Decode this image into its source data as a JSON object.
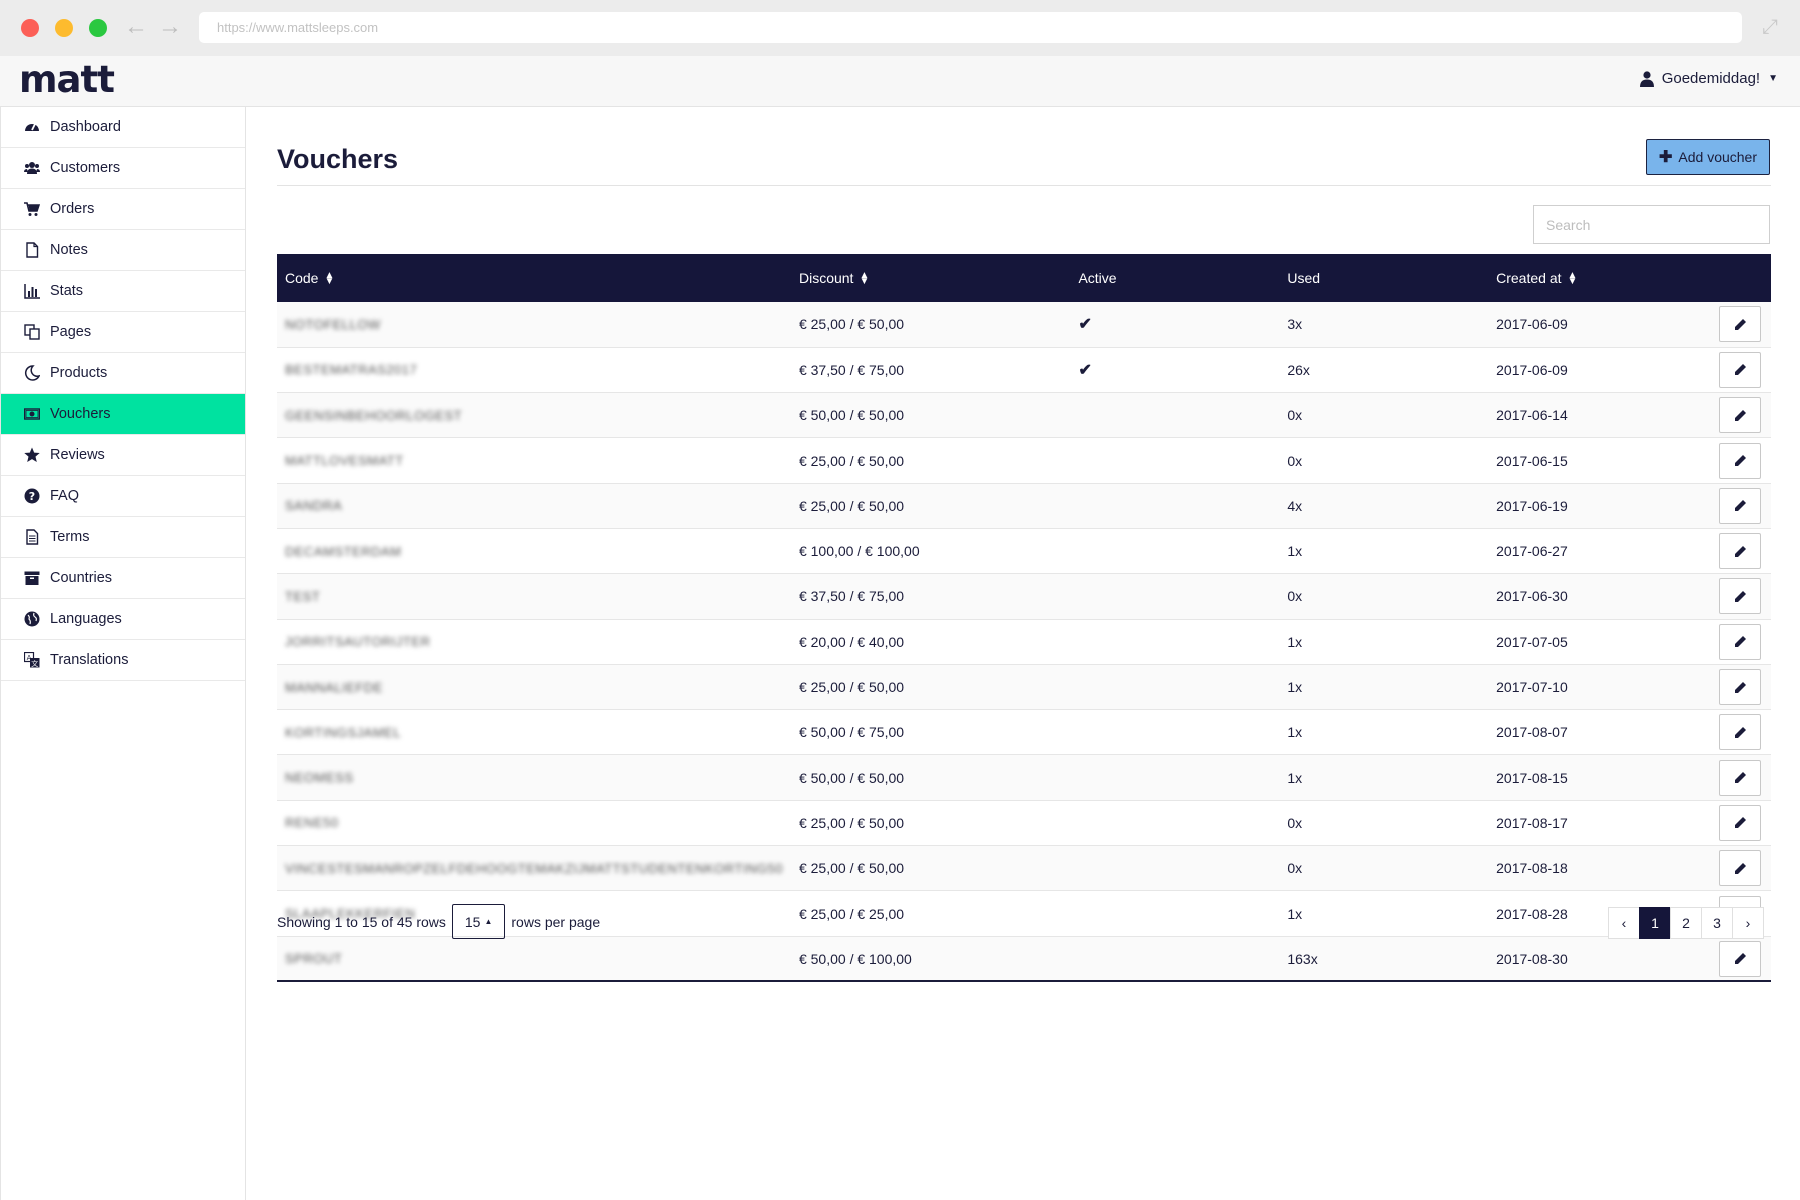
{
  "browser": {
    "url": "https://www.mattsleeps.com"
  },
  "app": {
    "logo": "matt",
    "greeting": "Goedemiddag!"
  },
  "sidebar": {
    "items": [
      {
        "label": "Dashboard",
        "icon": "dashboard-icon"
      },
      {
        "label": "Customers",
        "icon": "users-icon"
      },
      {
        "label": "Orders",
        "icon": "cart-icon"
      },
      {
        "label": "Notes",
        "icon": "file-icon"
      },
      {
        "label": "Stats",
        "icon": "bar-chart-icon"
      },
      {
        "label": "Pages",
        "icon": "copy-icon"
      },
      {
        "label": "Products",
        "icon": "moon-icon"
      },
      {
        "label": "Vouchers",
        "icon": "money-icon",
        "active": true
      },
      {
        "label": "Reviews",
        "icon": "star-icon"
      },
      {
        "label": "FAQ",
        "icon": "question-icon"
      },
      {
        "label": "Terms",
        "icon": "document-icon"
      },
      {
        "label": "Countries",
        "icon": "archive-icon"
      },
      {
        "label": "Languages",
        "icon": "globe-icon"
      },
      {
        "label": "Translations",
        "icon": "translate-icon"
      }
    ]
  },
  "page": {
    "title": "Vouchers",
    "add_button": "Add voucher",
    "search_placeholder": "Search"
  },
  "table": {
    "columns": [
      "Code",
      "Discount",
      "Active",
      "Used",
      "Created at"
    ],
    "rows": [
      {
        "code": "NOTOFELLOW",
        "discount": "€ 25,00 / € 50,00",
        "active": true,
        "used": "3x",
        "created": "2017-06-09"
      },
      {
        "code": "BESTEMATRAS2017",
        "discount": "€ 37,50 / € 75,00",
        "active": true,
        "used": "26x",
        "created": "2017-06-09"
      },
      {
        "code": "GEENSINBEHOORLOGEST",
        "discount": "€ 50,00 / € 50,00",
        "active": false,
        "used": "0x",
        "created": "2017-06-14"
      },
      {
        "code": "MATTLOVESMATT",
        "discount": "€ 25,00 / € 50,00",
        "active": false,
        "used": "0x",
        "created": "2017-06-15"
      },
      {
        "code": "SANDRA",
        "discount": "€ 25,00 / € 50,00",
        "active": false,
        "used": "4x",
        "created": "2017-06-19"
      },
      {
        "code": "DECAMSTERDAM",
        "discount": "€ 100,00 / € 100,00",
        "active": false,
        "used": "1x",
        "created": "2017-06-27"
      },
      {
        "code": "TEST",
        "discount": "€ 37,50 / € 75,00",
        "active": false,
        "used": "0x",
        "created": "2017-06-30"
      },
      {
        "code": "JORRITSAUTORIJTER",
        "discount": "€ 20,00 / € 40,00",
        "active": false,
        "used": "1x",
        "created": "2017-07-05"
      },
      {
        "code": "MANNALIEFDE",
        "discount": "€ 25,00 / € 50,00",
        "active": false,
        "used": "1x",
        "created": "2017-07-10"
      },
      {
        "code": "KORTINGSJAMEL",
        "discount": "€ 50,00 / € 75,00",
        "active": false,
        "used": "1x",
        "created": "2017-08-07"
      },
      {
        "code": "NEOMESS",
        "discount": "€ 50,00 / € 50,00",
        "active": false,
        "used": "1x",
        "created": "2017-08-15"
      },
      {
        "code": "RENE50",
        "discount": "€ 25,00 / € 50,00",
        "active": false,
        "used": "0x",
        "created": "2017-08-17"
      },
      {
        "code": "VINCESTESMANROPZELFDEHOOGTEMAKZIJMATTSTUDENTENKORTING50",
        "discount": "€ 25,00 / € 50,00",
        "active": false,
        "used": "0x",
        "created": "2017-08-18"
      },
      {
        "code": "SLAAPLEKKERFIEN",
        "discount": "€ 25,00 / € 25,00",
        "active": false,
        "used": "1x",
        "created": "2017-08-28"
      },
      {
        "code": "SPROUT",
        "discount": "€ 50,00 / € 100,00",
        "active": false,
        "used": "163x",
        "created": "2017-08-30"
      }
    ]
  },
  "footer": {
    "showing_text": "Showing 1 to 15 of 45 rows",
    "page_size": "15",
    "rows_per_page": "rows per page",
    "pager": {
      "prev": "‹",
      "pages": [
        "1",
        "2",
        "3"
      ],
      "next": "›",
      "current": "1"
    }
  }
}
